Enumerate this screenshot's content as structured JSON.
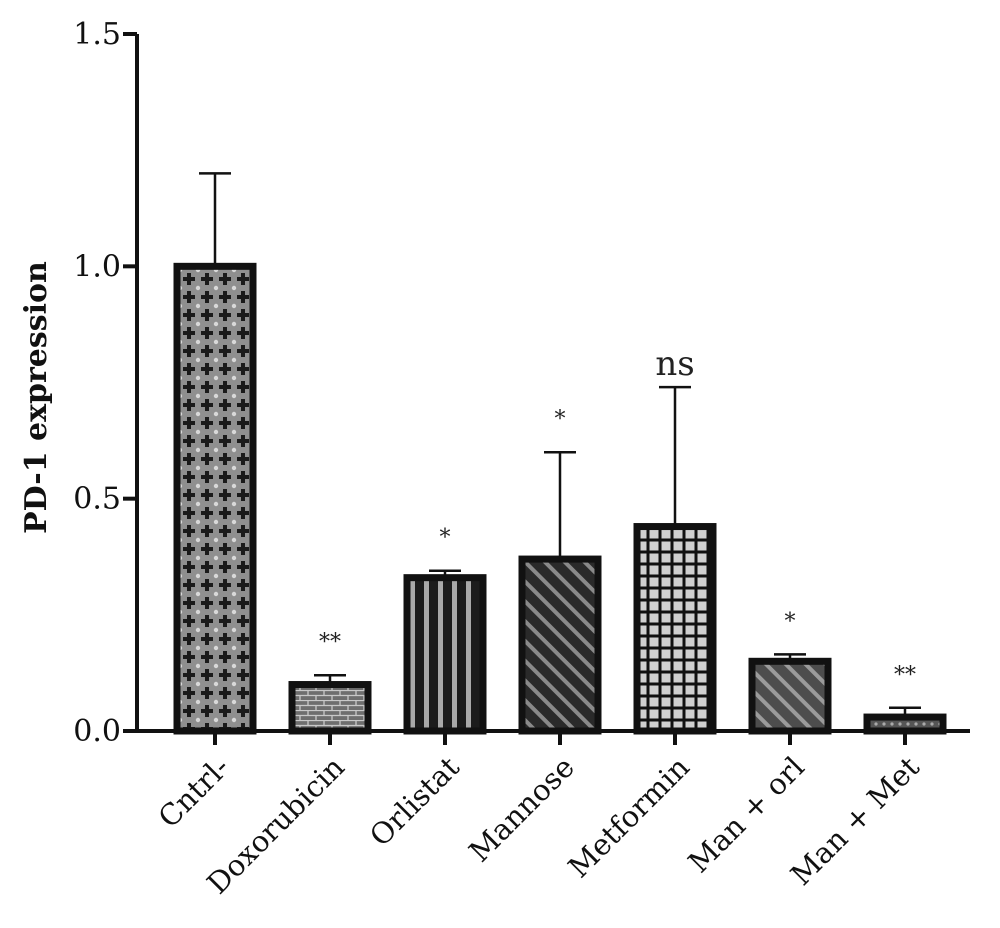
{
  "chart_data": {
    "type": "bar",
    "title": "",
    "xlabel": "",
    "ylabel": "PD-1 expression",
    "ylim": [
      0,
      1.5
    ],
    "yticks": [
      "0.0",
      "0.5",
      "1.0",
      "1.5"
    ],
    "grid": false,
    "legend": "none",
    "categories": [
      "Cntrl-",
      "Doxorubicin",
      "Orlistat",
      "Mannose",
      "Metformin",
      "Man + orl",
      "Man + Met"
    ],
    "values": [
      1.0,
      0.1,
      0.33,
      0.37,
      0.44,
      0.15,
      0.03
    ],
    "errors": [
      0.2,
      0.02,
      0.015,
      0.23,
      0.3,
      0.015,
      0.02
    ],
    "significance": [
      "",
      "**",
      "*",
      "*",
      "ns",
      "*",
      "**"
    ],
    "patterns": [
      "cross-dots",
      "brick",
      "vertical-stripes",
      "diagonal-stripes",
      "grid",
      "diagonal-stripes-gray",
      "dots"
    ]
  }
}
